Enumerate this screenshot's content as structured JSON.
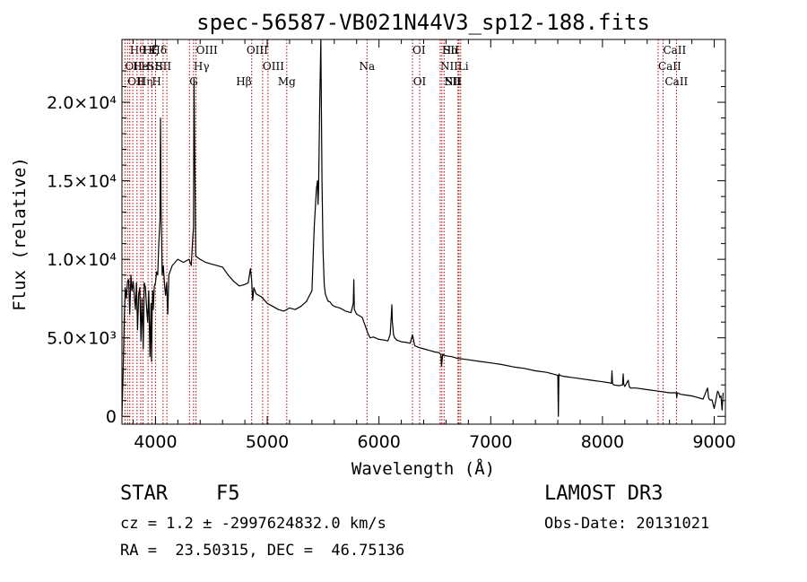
{
  "chart_data": {
    "type": "line",
    "title": "spec-56587-VB021N44V3_sp12-188.fits",
    "xlabel": "Wavelength (Å)",
    "ylabel": "Flux (relative)",
    "xlim": [
      3700,
      9100
    ],
    "ylim": [
      -500,
      24000
    ],
    "x_ticks": [
      4000,
      5000,
      6000,
      7000,
      8000,
      9000
    ],
    "y_ticks": [
      {
        "value": 0,
        "label": "0"
      },
      {
        "value": 5000,
        "label": "5.0×10³"
      },
      {
        "value": 10000,
        "label": "1.0×10⁴"
      },
      {
        "value": 15000,
        "label": "1.5×10⁴"
      },
      {
        "value": 20000,
        "label": "2.0×10⁴"
      }
    ],
    "series": [
      {
        "name": "flux",
        "x": [
          3700,
          3710,
          3720,
          3730,
          3740,
          3750,
          3760,
          3770,
          3780,
          3790,
          3800,
          3810,
          3820,
          3830,
          3840,
          3850,
          3860,
          3870,
          3880,
          3890,
          3900,
          3910,
          3920,
          3930,
          3940,
          3950,
          3960,
          3965,
          3970,
          3975,
          3980,
          3990,
          4000,
          4010,
          4020,
          4030,
          4040,
          4045,
          4050,
          4060,
          4070,
          4080,
          4090,
          4100,
          4110,
          4120,
          4150,
          4200,
          4250,
          4300,
          4320,
          4335,
          4340,
          4345,
          4360,
          4400,
          4450,
          4500,
          4550,
          4600,
          4650,
          4700,
          4750,
          4800,
          4830,
          4850,
          4860,
          4870,
          4880,
          4900,
          4950,
          5000,
          5050,
          5100,
          5150,
          5200,
          5250,
          5300,
          5350,
          5400,
          5420,
          5440,
          5450,
          5455,
          5460,
          5470,
          5480,
          5490,
          5500,
          5510,
          5520,
          5530,
          5540,
          5550,
          5560,
          5570,
          5580,
          5600,
          5650,
          5700,
          5750,
          5770,
          5775,
          5780,
          5800,
          5850,
          5880,
          5900,
          5920,
          5950,
          6000,
          6050,
          6080,
          6100,
          6110,
          6115,
          6120,
          6130,
          6140,
          6160,
          6200,
          6250,
          6280,
          6300,
          6320,
          6350,
          6400,
          6450,
          6500,
          6540,
          6555,
          6560,
          6565,
          6570,
          6580,
          6600,
          6650,
          6700,
          6750,
          6800,
          6900,
          7000,
          7100,
          7200,
          7300,
          7400,
          7500,
          7580,
          7600,
          7605,
          7610,
          7620,
          7650,
          7700,
          7800,
          7900,
          8000,
          8050,
          8080,
          8085,
          8090,
          8100,
          8150,
          8180,
          8185,
          8190,
          8200,
          8230,
          8240,
          8250,
          8300,
          8400,
          8500,
          8600,
          8660,
          8665,
          8670,
          8700,
          8750,
          8800,
          8850,
          8900,
          8940,
          8950,
          8960,
          8980,
          9000,
          9030,
          9040,
          9050,
          9060,
          9070,
          9080
        ],
        "y": [
          0,
          2500,
          6000,
          8200,
          7500,
          8600,
          8700,
          6500,
          9000,
          8000,
          8600,
          7800,
          6800,
          8500,
          5500,
          7800,
          8200,
          4800,
          7500,
          4300,
          8500,
          8200,
          7000,
          6000,
          8000,
          3800,
          7200,
          3500,
          6500,
          8000,
          6800,
          8300,
          8500,
          9200,
          9000,
          11000,
          12500,
          19000,
          13500,
          9000,
          9600,
          8500,
          7700,
          8500,
          6500,
          9000,
          9600,
          10000,
          9800,
          10000,
          9600,
          11500,
          12000,
          21500,
          10200,
          10000,
          9800,
          9700,
          9600,
          9500,
          9000,
          8600,
          8300,
          8400,
          8500,
          9400,
          8700,
          7400,
          8200,
          7800,
          7600,
          7200,
          7000,
          6800,
          6700,
          6900,
          6800,
          7000,
          7300,
          8000,
          12000,
          14500,
          15000,
          13500,
          14500,
          20000,
          24000,
          15000,
          10500,
          8400,
          7800,
          7600,
          7400,
          7300,
          7300,
          7200,
          7100,
          7000,
          6900,
          6700,
          6600,
          7200,
          8700,
          6800,
          6500,
          6300,
          5700,
          5300,
          5000,
          5050,
          4900,
          4850,
          4800,
          5200,
          6400,
          7100,
          6000,
          5200,
          5000,
          4850,
          4750,
          4700,
          4650,
          5200,
          4500,
          4400,
          4300,
          4200,
          4100,
          4050,
          3900,
          3200,
          3600,
          3950,
          3900,
          3850,
          3800,
          3700,
          3650,
          3600,
          3500,
          3400,
          3300,
          3150,
          3050,
          2900,
          2800,
          2650,
          2600,
          0,
          2700,
          2600,
          2550,
          2500,
          2400,
          2300,
          2200,
          2150,
          2100,
          2900,
          2100,
          2000,
          1950,
          2000,
          2700,
          2050,
          1900,
          2300,
          1900,
          1800,
          1800,
          1700,
          1600,
          1500,
          1500,
          1200,
          1500,
          1400,
          1350,
          1300,
          1200,
          1100,
          1800,
          1150,
          1050,
          1050,
          500,
          1600,
          1500,
          1200,
          1300,
          400,
          1500
        ]
      }
    ],
    "lines": [
      {
        "x": 3727,
        "label": "OII",
        "row": 1,
        "anchor": "start"
      },
      {
        "x": 3750,
        "label": "OII",
        "row": 2,
        "anchor": "start"
      },
      {
        "x": 3770,
        "label": "Hθ",
        "row": 0,
        "anchor": "start"
      },
      {
        "x": 3797,
        "label": "He",
        "row": 1,
        "anchor": "start"
      },
      {
        "x": 3835,
        "label": "Hη",
        "row": 2,
        "anchor": "start"
      },
      {
        "x": 3869,
        "label": "Hι",
        "row": 1,
        "anchor": "start"
      },
      {
        "x": 3889,
        "label": "Hζ",
        "row": 0,
        "anchor": "start"
      },
      {
        "x": 3934,
        "label": "K",
        "row": 0,
        "anchor": "start"
      },
      {
        "x": 3968,
        "label": "H",
        "row": 2,
        "anchor": "start"
      },
      {
        "x": 4000,
        "label": "SII",
        "row": 1,
        "anchor": "start"
      },
      {
        "x": 4068,
        "label": "SII",
        "row": 1,
        "anchor": "end"
      },
      {
        "x": 4102,
        "label": "Hδ",
        "row": 0,
        "anchor": "end"
      },
      {
        "x": 4304,
        "label": "G",
        "row": 2,
        "anchor": "start"
      },
      {
        "x": 4341,
        "label": "Hγ",
        "row": 1,
        "anchor": "start"
      },
      {
        "x": 4363,
        "label": "OIII",
        "row": 0,
        "anchor": "start"
      },
      {
        "x": 4861,
        "label": "Hβ",
        "row": 2,
        "anchor": "end"
      },
      {
        "x": 4959,
        "label": "OIII",
        "row": 1,
        "anchor": "start"
      },
      {
        "x": 5007,
        "label": "OIII",
        "row": 0,
        "anchor": "end"
      },
      {
        "x": 5175,
        "label": "Mg",
        "row": 2,
        "anchor": "middle"
      },
      {
        "x": 5893,
        "label": "Na",
        "row": 1,
        "anchor": "middle"
      },
      {
        "x": 6300,
        "label": "OI",
        "row": 0,
        "anchor": "start"
      },
      {
        "x": 6364,
        "label": "OI",
        "row": 2,
        "anchor": "middle"
      },
      {
        "x": 6548,
        "label": "NII",
        "row": 1,
        "anchor": "start"
      },
      {
        "x": 6563,
        "label": "Hα",
        "row": 0,
        "anchor": "start"
      },
      {
        "x": 6583,
        "label": "NII",
        "row": 2,
        "anchor": "start"
      },
      {
        "x": 6707,
        "label": "Li",
        "row": 1,
        "anchor": "start"
      },
      {
        "x": 6716,
        "label": "SII",
        "row": 0,
        "anchor": "end"
      },
      {
        "x": 6731,
        "label": "SII",
        "row": 2,
        "anchor": "end"
      },
      {
        "x": 8498,
        "label": "CaII",
        "row": 1,
        "anchor": "start"
      },
      {
        "x": 8542,
        "label": "CaII",
        "row": 0,
        "anchor": "start"
      },
      {
        "x": 8662,
        "label": "CaII",
        "row": 2,
        "anchor": "middle"
      }
    ]
  },
  "footer": {
    "object_class": "STAR",
    "subclass": "F5",
    "survey": "LAMOST DR3",
    "redshift": "cz = 1.2 ± -2997624832.0 km/s",
    "obs_date": "Obs-Date: 20131021",
    "coords": "RA =  23.50315, DEC =  46.75136"
  }
}
